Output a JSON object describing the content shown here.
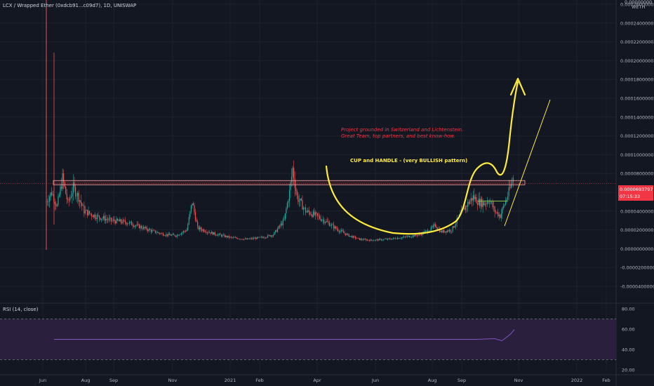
{
  "header": {
    "symbol_line": "LCX / Wrapped Ether (0xdcb91...c09d7), 1D, UNISWAP"
  },
  "axis_unit": {
    "line1": "0.00000000",
    "line2": "WETH"
  },
  "price_tag": {
    "price": "0.0000693797",
    "countdown": "07:15:33"
  },
  "rsi_panel": {
    "label": "RSI (14, close)"
  },
  "annotations": {
    "project_text_line1": "Project grounded in Switzerland and Lichtenstein.",
    "project_text_line2": "Great Team, top partners, and best know-how.",
    "pattern_text": "CUP and HANDLE - (very BULLISH pattern)"
  },
  "colors": {
    "background": "#131722",
    "up": "#26a69a",
    "down": "#ef5350",
    "drawing": "#ffeb3b",
    "price_tag": "#f23645",
    "rsi_line": "#7e57c2",
    "rsi_band": "#2a1f3d"
  },
  "chart_data": [
    {
      "type": "candlestick",
      "x_labels": [
        "Jun",
        "Aug",
        "Sep",
        "Nov",
        "2021",
        "Feb",
        "Apr",
        "Jun",
        "Aug",
        "Sep",
        "Nov",
        "2022",
        "Feb"
      ],
      "y_ticks": [
        "0.0002600000",
        "0.0002400000",
        "0.0002200000",
        "0.0002000000",
        "0.0001800000",
        "0.0001600000",
        "0.0001400000",
        "0.0001200000",
        "0.0001000000",
        "0.0000800000",
        "0.0000600000",
        "0.0000400000",
        "0.0000200000",
        "0.0000000000",
        "-0.0000200000",
        "-0.0000400000"
      ],
      "ylim": [
        -5e-05,
        0.00028
      ],
      "approx_close_path": [
        [
          0,
          5e-05
        ],
        [
          5,
          6e-05
        ],
        [
          10,
          4.5e-05
        ],
        [
          15,
          7.5e-05
        ],
        [
          20,
          4.8e-05
        ],
        [
          25,
          6.5e-05
        ],
        [
          30,
          5.5e-05
        ],
        [
          35,
          4e-05
        ],
        [
          45,
          3.5e-05
        ],
        [
          60,
          3e-05
        ],
        [
          75,
          2.8e-05
        ],
        [
          90,
          2.2e-05
        ],
        [
          100,
          1.8e-05
        ],
        [
          110,
          1.5e-05
        ],
        [
          120,
          1.4e-05
        ],
        [
          130,
          2e-05
        ],
        [
          135,
          5e-05
        ],
        [
          140,
          2.2e-05
        ],
        [
          155,
          1.6e-05
        ],
        [
          170,
          1.2e-05
        ],
        [
          185,
          1e-05
        ],
        [
          200,
          1.2e-05
        ],
        [
          210,
          1.5e-05
        ],
        [
          220,
          3e-05
        ],
        [
          225,
          6e-05
        ],
        [
          228,
          8.5e-05
        ],
        [
          232,
          5.5e-05
        ],
        [
          240,
          4e-05
        ],
        [
          250,
          3.5e-05
        ],
        [
          260,
          2.8e-05
        ],
        [
          270,
          2e-05
        ],
        [
          280,
          1.4e-05
        ],
        [
          290,
          1e-05
        ],
        [
          300,
          9e-06
        ],
        [
          315,
          1e-05
        ],
        [
          330,
          1.2e-05
        ],
        [
          345,
          1.5e-05
        ],
        [
          355,
          2e-05
        ],
        [
          360,
          2.5e-05
        ],
        [
          365,
          1.8e-05
        ],
        [
          375,
          2e-05
        ],
        [
          385,
          4e-05
        ],
        [
          390,
          4.8e-05
        ],
        [
          395,
          5.5e-05
        ],
        [
          400,
          5e-05
        ],
        [
          405,
          4.8e-05
        ],
        [
          410,
          5.2e-05
        ],
        [
          415,
          4e-05
        ],
        [
          420,
          3.5e-05
        ],
        [
          428,
          6e-05
        ],
        [
          432,
          7.5e-05
        ]
      ],
      "resistance_zone": [
        6.8e-05,
        7.25e-05
      ],
      "last_price": 6.93797e-05
    },
    {
      "type": "line",
      "series": [
        {
          "name": "RSI (14, close)",
          "values_note": "flat",
          "value": 50
        }
      ],
      "y_ticks": [
        "80.00",
        "60.00",
        "40.00",
        "20.00"
      ],
      "ylim": [
        15,
        85
      ],
      "band": [
        30,
        70
      ]
    }
  ]
}
